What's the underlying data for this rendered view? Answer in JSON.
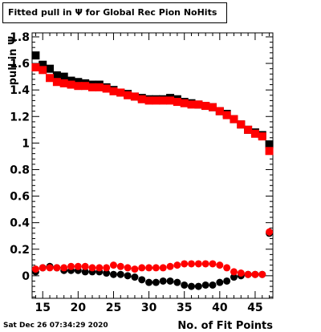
{
  "title": "Fitted pull in  Ψ  for Global Rec Pion NoHits",
  "timestamp": "Sat Dec 26 07:34:29 2020",
  "chart_data": {
    "type": "scatter",
    "title": "Fitted pull in  Ψ  for Global Rec Pion NoHits",
    "xlabel": "No. of Fit Points",
    "ylabel": "pull in  Ψ",
    "xlim": [
      13.5,
      47.5
    ],
    "ylim": [
      -0.17,
      1.83
    ],
    "x_ticks": [
      15,
      20,
      25,
      30,
      35,
      40,
      45
    ],
    "y_ticks": [
      0,
      0.2,
      0.4,
      0.6,
      0.8,
      1,
      1.2,
      1.4,
      1.6,
      1.8
    ],
    "y_tick_labels": [
      "0",
      "0.2",
      "0.4",
      "0.6",
      "0.8",
      "1",
      "1.2",
      "1.4",
      "1.6",
      "1.8"
    ],
    "grid": false,
    "legend": "none",
    "series": [
      {
        "color": "#000000",
        "marker": "square",
        "x": [
          14,
          15,
          16,
          17,
          18,
          19,
          20,
          21,
          22,
          23,
          24,
          25,
          26,
          27,
          28,
          29,
          30,
          31,
          32,
          33,
          34,
          35,
          36,
          37,
          38,
          39,
          40,
          41,
          42,
          43,
          44,
          45,
          46,
          47
        ],
        "values": [
          1.66,
          1.59,
          1.56,
          1.51,
          1.5,
          1.47,
          1.46,
          1.45,
          1.44,
          1.44,
          1.42,
          1.4,
          1.38,
          1.37,
          1.35,
          1.34,
          1.33,
          1.33,
          1.33,
          1.34,
          1.33,
          1.31,
          1.3,
          1.29,
          1.28,
          1.27,
          1.24,
          1.22,
          1.18,
          1.14,
          1.1,
          1.08,
          1.06,
          0.99
        ]
      },
      {
        "color": "#ff0000",
        "marker": "square",
        "x": [
          14,
          15,
          16,
          17,
          18,
          19,
          20,
          21,
          22,
          23,
          24,
          25,
          26,
          27,
          28,
          29,
          30,
          31,
          32,
          33,
          34,
          35,
          36,
          37,
          38,
          39,
          40,
          41,
          42,
          43,
          44,
          45,
          46,
          47
        ],
        "values": [
          1.57,
          1.55,
          1.49,
          1.46,
          1.45,
          1.44,
          1.43,
          1.43,
          1.42,
          1.42,
          1.41,
          1.39,
          1.38,
          1.36,
          1.35,
          1.33,
          1.32,
          1.32,
          1.32,
          1.32,
          1.31,
          1.3,
          1.29,
          1.29,
          1.28,
          1.27,
          1.24,
          1.21,
          1.18,
          1.14,
          1.1,
          1.07,
          1.05,
          0.94
        ]
      },
      {
        "color": "#000000",
        "marker": "circle",
        "x": [
          14,
          15,
          16,
          17,
          18,
          19,
          20,
          21,
          22,
          23,
          24,
          25,
          26,
          27,
          28,
          29,
          30,
          31,
          32,
          33,
          34,
          35,
          36,
          37,
          38,
          39,
          40,
          41,
          42,
          43,
          44,
          45,
          46,
          47
        ],
        "values": [
          0.03,
          0.06,
          0.07,
          0.06,
          0.04,
          0.04,
          0.04,
          0.03,
          0.03,
          0.03,
          0.02,
          0.01,
          0.01,
          0.0,
          -0.01,
          -0.03,
          -0.05,
          -0.05,
          -0.04,
          -0.04,
          -0.05,
          -0.07,
          -0.08,
          -0.08,
          -0.07,
          -0.07,
          -0.05,
          -0.04,
          -0.01,
          0.0,
          0.01,
          0.01,
          0.01,
          0.32
        ]
      },
      {
        "color": "#ff0000",
        "marker": "circle",
        "x": [
          14,
          15,
          16,
          17,
          18,
          19,
          20,
          21,
          22,
          23,
          24,
          25,
          26,
          27,
          28,
          29,
          30,
          31,
          32,
          33,
          34,
          35,
          36,
          37,
          38,
          39,
          40,
          41,
          42,
          43,
          44,
          45,
          46,
          47
        ],
        "values": [
          0.05,
          0.06,
          0.06,
          0.06,
          0.06,
          0.07,
          0.07,
          0.07,
          0.06,
          0.06,
          0.06,
          0.08,
          0.07,
          0.06,
          0.05,
          0.06,
          0.06,
          0.06,
          0.06,
          0.07,
          0.08,
          0.09,
          0.09,
          0.09,
          0.09,
          0.09,
          0.08,
          0.06,
          0.03,
          0.02,
          0.01,
          0.01,
          0.01,
          0.33
        ],
        "err": [
          0.0,
          0.0,
          0.0,
          0.0,
          0.0,
          0.0,
          0.0,
          0.0,
          0.0,
          0.0,
          0.0,
          0.0,
          0.0,
          0.0,
          0.0,
          0.0,
          0.0,
          0.0,
          0.0,
          0.0,
          0.0,
          0.0,
          0.0,
          0.0,
          0.0,
          0.0,
          0.0,
          0.0,
          0.0,
          0.0,
          0.0,
          0.0,
          0.0,
          0.03
        ]
      }
    ]
  }
}
